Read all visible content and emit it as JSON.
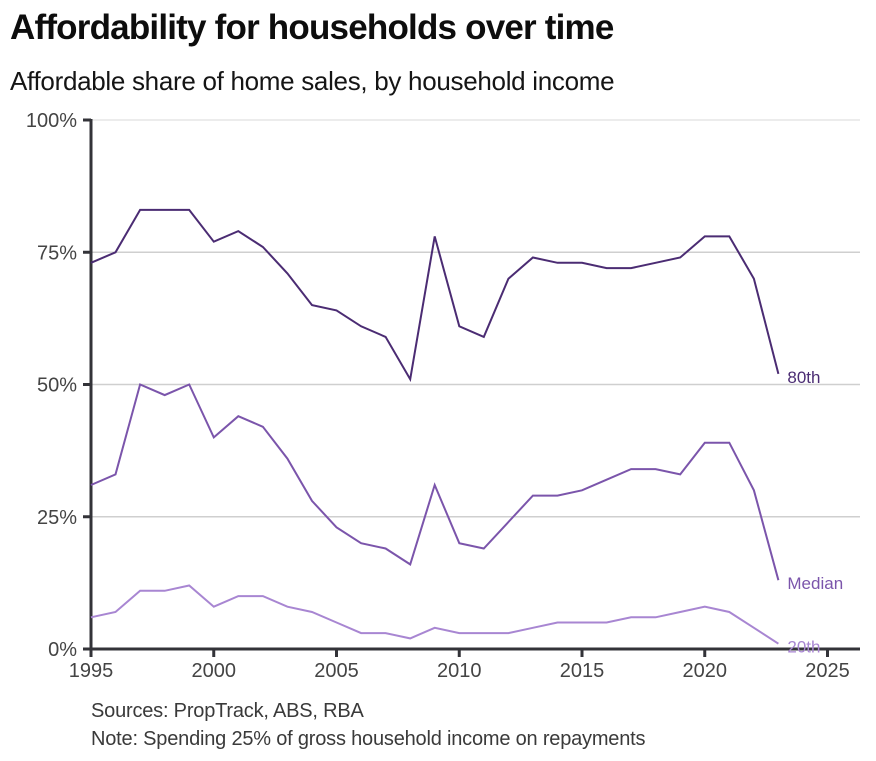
{
  "header": {
    "title": "Affordability for households over time",
    "subtitle": "Affordable share of home sales, by household income"
  },
  "footer": {
    "sources": "Sources: PropTrack, ABS, RBA",
    "note": "Note: Spending 25% of gross household income on repayments"
  },
  "chart_data": {
    "type": "line",
    "title": "Affordability for households over time",
    "subtitle": "Affordable share of home sales, by household income",
    "xlabel": "",
    "ylabel": "",
    "xlim": [
      1995,
      2026
    ],
    "ylim": [
      0,
      100
    ],
    "grid": true,
    "legend": "inline-end-labels",
    "x_ticks": [
      1995,
      2000,
      2005,
      2010,
      2015,
      2020,
      2025
    ],
    "x_tick_labels": [
      "1995",
      "2000",
      "2005",
      "2010",
      "2015",
      "2020",
      "2025"
    ],
    "y_ticks": [
      0,
      25,
      50,
      75,
      100
    ],
    "y_tick_labels": [
      "0%",
      "25%",
      "50%",
      "75%",
      "100%"
    ],
    "x": [
      1995,
      1996,
      1997,
      1998,
      1999,
      2000,
      2001,
      2002,
      2003,
      2004,
      2005,
      2006,
      2007,
      2008,
      2009,
      2010,
      2011,
      2012,
      2013,
      2014,
      2015,
      2016,
      2017,
      2018,
      2019,
      2020,
      2021,
      2022,
      2023
    ],
    "series": [
      {
        "name": "80th",
        "color": "#4b2c73",
        "values": [
          73,
          75,
          83,
          83,
          83,
          77,
          79,
          76,
          71,
          65,
          64,
          61,
          59,
          51,
          78,
          61,
          59,
          70,
          74,
          73,
          73,
          72,
          72,
          73,
          74,
          78,
          78,
          70,
          52
        ]
      },
      {
        "name": "Median",
        "color": "#7b55ab",
        "values": [
          31,
          33,
          50,
          48,
          50,
          40,
          44,
          42,
          36,
          28,
          23,
          20,
          19,
          16,
          31,
          20,
          19,
          24,
          29,
          29,
          30,
          32,
          34,
          34,
          33,
          39,
          39,
          30,
          13
        ]
      },
      {
        "name": "20th",
        "color": "#a886d2",
        "values": [
          6,
          7,
          11,
          11,
          12,
          8,
          10,
          10,
          8,
          7,
          5,
          3,
          3,
          2,
          4,
          3,
          3,
          3,
          4,
          5,
          5,
          5,
          6,
          6,
          7,
          8,
          7,
          4,
          1
        ]
      }
    ]
  }
}
